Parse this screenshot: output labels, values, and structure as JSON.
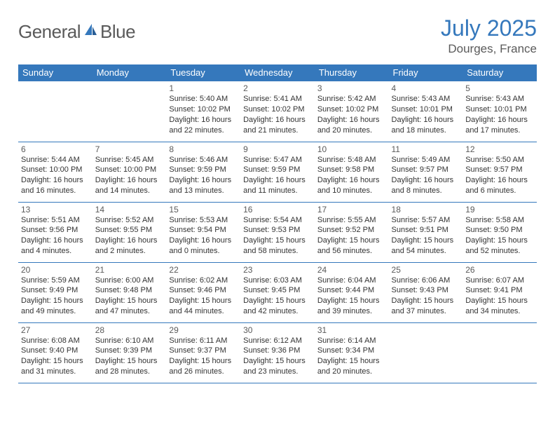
{
  "brand": {
    "text1": "General",
    "text2": "Blue"
  },
  "title": "July 2025",
  "location": "Dourges, France",
  "colors": {
    "accent": "#3578bc",
    "text_muted": "#5a5a5a",
    "text_body": "#333333",
    "white": "#ffffff"
  },
  "weekdays": [
    "Sunday",
    "Monday",
    "Tuesday",
    "Wednesday",
    "Thursday",
    "Friday",
    "Saturday"
  ],
  "weeks": [
    [
      {
        "empty": true
      },
      {
        "empty": true
      },
      {
        "day": "1",
        "sunrise": "5:40 AM",
        "sunset": "10:02 PM",
        "daylight": "16 hours and 22 minutes."
      },
      {
        "day": "2",
        "sunrise": "5:41 AM",
        "sunset": "10:02 PM",
        "daylight": "16 hours and 21 minutes."
      },
      {
        "day": "3",
        "sunrise": "5:42 AM",
        "sunset": "10:02 PM",
        "daylight": "16 hours and 20 minutes."
      },
      {
        "day": "4",
        "sunrise": "5:43 AM",
        "sunset": "10:01 PM",
        "daylight": "16 hours and 18 minutes."
      },
      {
        "day": "5",
        "sunrise": "5:43 AM",
        "sunset": "10:01 PM",
        "daylight": "16 hours and 17 minutes."
      }
    ],
    [
      {
        "day": "6",
        "sunrise": "5:44 AM",
        "sunset": "10:00 PM",
        "daylight": "16 hours and 16 minutes."
      },
      {
        "day": "7",
        "sunrise": "5:45 AM",
        "sunset": "10:00 PM",
        "daylight": "16 hours and 14 minutes."
      },
      {
        "day": "8",
        "sunrise": "5:46 AM",
        "sunset": "9:59 PM",
        "daylight": "16 hours and 13 minutes."
      },
      {
        "day": "9",
        "sunrise": "5:47 AM",
        "sunset": "9:59 PM",
        "daylight": "16 hours and 11 minutes."
      },
      {
        "day": "10",
        "sunrise": "5:48 AM",
        "sunset": "9:58 PM",
        "daylight": "16 hours and 10 minutes."
      },
      {
        "day": "11",
        "sunrise": "5:49 AM",
        "sunset": "9:57 PM",
        "daylight": "16 hours and 8 minutes."
      },
      {
        "day": "12",
        "sunrise": "5:50 AM",
        "sunset": "9:57 PM",
        "daylight": "16 hours and 6 minutes."
      }
    ],
    [
      {
        "day": "13",
        "sunrise": "5:51 AM",
        "sunset": "9:56 PM",
        "daylight": "16 hours and 4 minutes."
      },
      {
        "day": "14",
        "sunrise": "5:52 AM",
        "sunset": "9:55 PM",
        "daylight": "16 hours and 2 minutes."
      },
      {
        "day": "15",
        "sunrise": "5:53 AM",
        "sunset": "9:54 PM",
        "daylight": "16 hours and 0 minutes."
      },
      {
        "day": "16",
        "sunrise": "5:54 AM",
        "sunset": "9:53 PM",
        "daylight": "15 hours and 58 minutes."
      },
      {
        "day": "17",
        "sunrise": "5:55 AM",
        "sunset": "9:52 PM",
        "daylight": "15 hours and 56 minutes."
      },
      {
        "day": "18",
        "sunrise": "5:57 AM",
        "sunset": "9:51 PM",
        "daylight": "15 hours and 54 minutes."
      },
      {
        "day": "19",
        "sunrise": "5:58 AM",
        "sunset": "9:50 PM",
        "daylight": "15 hours and 52 minutes."
      }
    ],
    [
      {
        "day": "20",
        "sunrise": "5:59 AM",
        "sunset": "9:49 PM",
        "daylight": "15 hours and 49 minutes."
      },
      {
        "day": "21",
        "sunrise": "6:00 AM",
        "sunset": "9:48 PM",
        "daylight": "15 hours and 47 minutes."
      },
      {
        "day": "22",
        "sunrise": "6:02 AM",
        "sunset": "9:46 PM",
        "daylight": "15 hours and 44 minutes."
      },
      {
        "day": "23",
        "sunrise": "6:03 AM",
        "sunset": "9:45 PM",
        "daylight": "15 hours and 42 minutes."
      },
      {
        "day": "24",
        "sunrise": "6:04 AM",
        "sunset": "9:44 PM",
        "daylight": "15 hours and 39 minutes."
      },
      {
        "day": "25",
        "sunrise": "6:06 AM",
        "sunset": "9:43 PM",
        "daylight": "15 hours and 37 minutes."
      },
      {
        "day": "26",
        "sunrise": "6:07 AM",
        "sunset": "9:41 PM",
        "daylight": "15 hours and 34 minutes."
      }
    ],
    [
      {
        "day": "27",
        "sunrise": "6:08 AM",
        "sunset": "9:40 PM",
        "daylight": "15 hours and 31 minutes."
      },
      {
        "day": "28",
        "sunrise": "6:10 AM",
        "sunset": "9:39 PM",
        "daylight": "15 hours and 28 minutes."
      },
      {
        "day": "29",
        "sunrise": "6:11 AM",
        "sunset": "9:37 PM",
        "daylight": "15 hours and 26 minutes."
      },
      {
        "day": "30",
        "sunrise": "6:12 AM",
        "sunset": "9:36 PM",
        "daylight": "15 hours and 23 minutes."
      },
      {
        "day": "31",
        "sunrise": "6:14 AM",
        "sunset": "9:34 PM",
        "daylight": "15 hours and 20 minutes."
      },
      {
        "empty": true
      },
      {
        "empty": true
      }
    ]
  ],
  "labels": {
    "sunrise": "Sunrise:",
    "sunset": "Sunset:",
    "daylight": "Daylight:"
  }
}
